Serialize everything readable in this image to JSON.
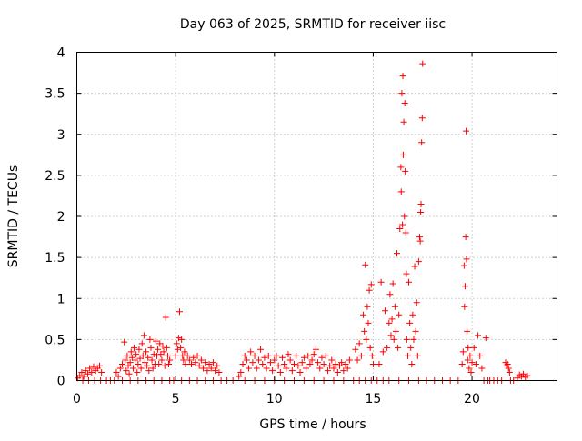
{
  "chart_data": {
    "type": "scatter",
    "title": "Day 063 of 2025, SRMTID for receiver iisc",
    "xlabel": "GPS time / hours",
    "ylabel": "SRMTID / TECUs",
    "xlim": [
      0,
      24.3
    ],
    "ylim": [
      0,
      4
    ],
    "x_ticks": [
      0,
      5,
      10,
      15,
      20
    ],
    "x_tick_labels": [
      "0",
      "5",
      "10",
      "15",
      "20"
    ],
    "y_ticks": [
      0,
      0.5,
      1,
      1.5,
      2,
      2.5,
      3,
      3.5,
      4
    ],
    "y_tick_labels": [
      "0",
      "0.5",
      "1",
      "1.5",
      "2",
      "2.5",
      "3",
      "3.5",
      "4"
    ],
    "grid": true,
    "marker": "+",
    "color": "#ff0000",
    "series": [
      {
        "name": "SRMTID",
        "points": [
          [
            0.05,
            0.03
          ],
          [
            0.15,
            0.06
          ],
          [
            0.25,
            0.1
          ],
          [
            0.35,
            0.05
          ],
          [
            0.45,
            0.12
          ],
          [
            0.55,
            0.08
          ],
          [
            0.65,
            0.15
          ],
          [
            0.75,
            0.1
          ],
          [
            0.85,
            0.17
          ],
          [
            0.95,
            0.12
          ],
          [
            1.05,
            0.15
          ],
          [
            1.15,
            0.18
          ],
          [
            1.25,
            0.1
          ],
          [
            0.3,
            0.0
          ],
          [
            0.6,
            0.0
          ],
          [
            0.9,
            0.0
          ],
          [
            1.2,
            0.0
          ],
          [
            1.5,
            0.0
          ],
          [
            1.7,
            0.0
          ],
          [
            1.9,
            0.0
          ],
          [
            2.0,
            0.1
          ],
          [
            2.1,
            0.05
          ],
          [
            2.2,
            0.15
          ],
          [
            2.3,
            0.2
          ],
          [
            2.4,
            0.47
          ],
          [
            2.45,
            0.25
          ],
          [
            2.5,
            0.12
          ],
          [
            2.55,
            0.3
          ],
          [
            2.6,
            0.18
          ],
          [
            2.65,
            0.08
          ],
          [
            2.7,
            0.22
          ],
          [
            2.75,
            0.35
          ],
          [
            2.8,
            0.28
          ],
          [
            2.85,
            0.15
          ],
          [
            2.9,
            0.4
          ],
          [
            2.95,
            0.25
          ],
          [
            3.0,
            0.32
          ],
          [
            3.05,
            0.1
          ],
          [
            3.1,
            0.2
          ],
          [
            3.15,
            0.38
          ],
          [
            3.2,
            0.27
          ],
          [
            3.25,
            0.15
          ],
          [
            3.3,
            0.45
          ],
          [
            3.35,
            0.3
          ],
          [
            3.4,
            0.55
          ],
          [
            3.45,
            0.22
          ],
          [
            3.5,
            0.35
          ],
          [
            3.55,
            0.18
          ],
          [
            3.6,
            0.28
          ],
          [
            3.65,
            0.12
          ],
          [
            3.7,
            0.5
          ],
          [
            3.75,
            0.4
          ],
          [
            3.8,
            0.25
          ],
          [
            3.85,
            0.15
          ],
          [
            3.9,
            0.32
          ],
          [
            3.95,
            0.2
          ],
          [
            4.0,
            0.48
          ],
          [
            4.05,
            0.3
          ],
          [
            4.1,
            0.38
          ],
          [
            4.15,
            0.2
          ],
          [
            4.2,
            0.45
          ],
          [
            4.25,
            0.32
          ],
          [
            4.3,
            0.25
          ],
          [
            4.35,
            0.42
          ],
          [
            4.4,
            0.35
          ],
          [
            4.45,
            0.18
          ],
          [
            4.5,
            0.77
          ],
          [
            4.55,
            0.4
          ],
          [
            4.6,
            0.3
          ],
          [
            4.65,
            0.2
          ],
          [
            4.7,
            0.25
          ],
          [
            2.3,
            0.0
          ],
          [
            2.7,
            0.0
          ],
          [
            3.1,
            0.0
          ],
          [
            3.5,
            0.0
          ],
          [
            3.9,
            0.0
          ],
          [
            4.3,
            0.0
          ],
          [
            4.7,
            0.0
          ],
          [
            4.9,
            0.0
          ],
          [
            5.0,
            0.3
          ],
          [
            5.05,
            0.45
          ],
          [
            5.1,
            0.38
          ],
          [
            5.15,
            0.52
          ],
          [
            5.2,
            0.84
          ],
          [
            5.25,
            0.4
          ],
          [
            5.3,
            0.5
          ],
          [
            5.35,
            0.3
          ],
          [
            5.4,
            0.25
          ],
          [
            5.45,
            0.35
          ],
          [
            5.5,
            0.2
          ],
          [
            5.6,
            0.3
          ],
          [
            5.7,
            0.25
          ],
          [
            5.8,
            0.2
          ],
          [
            5.9,
            0.28
          ],
          [
            6.0,
            0.22
          ],
          [
            6.1,
            0.3
          ],
          [
            6.2,
            0.18
          ],
          [
            6.3,
            0.25
          ],
          [
            6.4,
            0.15
          ],
          [
            6.5,
            0.22
          ],
          [
            6.6,
            0.12
          ],
          [
            6.7,
            0.2
          ],
          [
            6.8,
            0.15
          ],
          [
            6.9,
            0.22
          ],
          [
            7.0,
            0.12
          ],
          [
            7.1,
            0.18
          ],
          [
            7.2,
            0.1
          ],
          [
            5.3,
            0.0
          ],
          [
            5.7,
            0.0
          ],
          [
            6.1,
            0.0
          ],
          [
            6.5,
            0.0
          ],
          [
            6.9,
            0.0
          ],
          [
            7.3,
            0.0
          ],
          [
            7.6,
            0.0
          ],
          [
            7.9,
            0.0
          ],
          [
            8.2,
            0.05
          ],
          [
            8.3,
            0.1
          ],
          [
            8.4,
            0.2
          ],
          [
            8.5,
            0.3
          ],
          [
            8.6,
            0.25
          ],
          [
            8.7,
            0.15
          ],
          [
            8.8,
            0.35
          ],
          [
            8.9,
            0.22
          ],
          [
            9.0,
            0.3
          ],
          [
            9.1,
            0.15
          ],
          [
            9.2,
            0.25
          ],
          [
            9.3,
            0.38
          ],
          [
            9.4,
            0.2
          ],
          [
            9.5,
            0.28
          ],
          [
            9.6,
            0.15
          ],
          [
            9.7,
            0.3
          ],
          [
            9.8,
            0.22
          ],
          [
            9.9,
            0.12
          ],
          [
            10.0,
            0.25
          ],
          [
            10.1,
            0.3
          ],
          [
            10.2,
            0.18
          ],
          [
            10.3,
            0.1
          ],
          [
            10.4,
            0.28
          ],
          [
            10.5,
            0.2
          ],
          [
            10.6,
            0.15
          ],
          [
            10.7,
            0.32
          ],
          [
            10.8,
            0.25
          ],
          [
            10.9,
            0.12
          ],
          [
            11.0,
            0.2
          ],
          [
            11.1,
            0.3
          ],
          [
            11.2,
            0.18
          ],
          [
            11.3,
            0.1
          ],
          [
            11.4,
            0.22
          ],
          [
            11.5,
            0.28
          ],
          [
            11.6,
            0.15
          ],
          [
            11.7,
            0.3
          ],
          [
            11.8,
            0.2
          ],
          [
            11.9,
            0.25
          ],
          [
            12.0,
            0.32
          ],
          [
            12.1,
            0.38
          ],
          [
            12.2,
            0.22
          ],
          [
            12.3,
            0.15
          ],
          [
            12.4,
            0.28
          ],
          [
            12.5,
            0.2
          ],
          [
            12.6,
            0.3
          ],
          [
            12.7,
            0.12
          ],
          [
            12.8,
            0.18
          ],
          [
            12.9,
            0.25
          ],
          [
            13.0,
            0.15
          ],
          [
            13.1,
            0.2
          ],
          [
            13.2,
            0.1
          ],
          [
            13.3,
            0.18
          ],
          [
            13.4,
            0.22
          ],
          [
            13.5,
            0.12
          ],
          [
            13.6,
            0.2
          ],
          [
            13.7,
            0.15
          ],
          [
            13.8,
            0.25
          ],
          [
            8.5,
            0.0
          ],
          [
            9.0,
            0.0
          ],
          [
            9.5,
            0.0
          ],
          [
            10.0,
            0.0
          ],
          [
            10.5,
            0.0
          ],
          [
            11.0,
            0.0
          ],
          [
            11.5,
            0.0
          ],
          [
            12.0,
            0.0
          ],
          [
            12.5,
            0.0
          ],
          [
            13.0,
            0.0
          ],
          [
            13.5,
            0.0
          ],
          [
            14.0,
            0.0
          ],
          [
            14.1,
            0.38
          ],
          [
            14.2,
            0.25
          ],
          [
            14.3,
            0.45
          ],
          [
            14.4,
            0.3
          ],
          [
            14.5,
            0.8
          ],
          [
            14.55,
            0.6
          ],
          [
            14.6,
            1.41
          ],
          [
            14.65,
            0.5
          ],
          [
            14.7,
            0.9
          ],
          [
            14.75,
            0.7
          ],
          [
            14.8,
            1.1
          ],
          [
            14.85,
            0.4
          ],
          [
            14.9,
            1.17
          ],
          [
            14.95,
            0.3
          ],
          [
            15.0,
            0.2
          ],
          [
            14.3,
            0.0
          ],
          [
            14.6,
            0.0
          ],
          [
            14.9,
            0.0
          ],
          [
            15.2,
            0.0
          ],
          [
            15.5,
            0.0
          ],
          [
            15.8,
            0.0
          ],
          [
            15.3,
            0.2
          ],
          [
            15.4,
            1.2
          ],
          [
            15.5,
            0.35
          ],
          [
            15.6,
            0.85
          ],
          [
            15.7,
            0.4
          ],
          [
            15.8,
            0.7
          ],
          [
            15.85,
            1.05
          ],
          [
            15.9,
            0.55
          ],
          [
            15.95,
            0.75
          ],
          [
            16.0,
            1.18
          ],
          [
            16.05,
            0.5
          ],
          [
            16.1,
            0.9
          ],
          [
            16.15,
            0.6
          ],
          [
            16.2,
            1.55
          ],
          [
            16.25,
            0.4
          ],
          [
            16.3,
            0.8
          ],
          [
            16.35,
            1.85
          ],
          [
            16.4,
            2.6
          ],
          [
            16.42,
            2.3
          ],
          [
            16.45,
            3.5
          ],
          [
            16.48,
            1.9
          ],
          [
            16.5,
            3.71
          ],
          [
            16.52,
            2.75
          ],
          [
            16.55,
            3.15
          ],
          [
            16.58,
            2.0
          ],
          [
            16.6,
            3.38
          ],
          [
            16.62,
            2.55
          ],
          [
            16.65,
            1.8
          ],
          [
            16.68,
            1.3
          ],
          [
            16.7,
            0.5
          ],
          [
            16.75,
            0.3
          ],
          [
            16.8,
            1.2
          ],
          [
            16.85,
            0.7
          ],
          [
            16.9,
            0.4
          ],
          [
            16.95,
            0.2
          ],
          [
            17.0,
            0.8
          ],
          [
            17.05,
            0.5
          ],
          [
            17.1,
            1.39
          ],
          [
            17.15,
            0.6
          ],
          [
            17.2,
            0.95
          ],
          [
            17.25,
            0.3
          ],
          [
            17.3,
            1.45
          ],
          [
            17.35,
            1.75
          ],
          [
            17.38,
            1.7
          ],
          [
            17.4,
            2.05
          ],
          [
            17.42,
            2.15
          ],
          [
            17.45,
            2.9
          ],
          [
            17.48,
            3.2
          ],
          [
            17.5,
            3.86
          ],
          [
            16.3,
            0.0
          ],
          [
            16.8,
            0.0
          ],
          [
            17.3,
            0.0
          ],
          [
            17.7,
            0.0
          ],
          [
            18.1,
            0.0
          ],
          [
            18.5,
            0.0
          ],
          [
            18.9,
            0.0
          ],
          [
            19.3,
            0.0
          ],
          [
            19.5,
            0.2
          ],
          [
            19.55,
            0.35
          ],
          [
            19.6,
            1.4
          ],
          [
            19.62,
            0.9
          ],
          [
            19.65,
            1.15
          ],
          [
            19.68,
            1.75
          ],
          [
            19.7,
            3.04
          ],
          [
            19.72,
            1.48
          ],
          [
            19.75,
            0.6
          ],
          [
            19.78,
            0.25
          ],
          [
            19.8,
            0.4
          ],
          [
            19.85,
            0.15
          ],
          [
            19.9,
            0.3
          ],
          [
            19.95,
            0.1
          ],
          [
            20.0,
            0.22
          ],
          [
            20.1,
            0.4
          ],
          [
            20.2,
            0.2
          ],
          [
            20.3,
            0.55
          ],
          [
            20.4,
            0.3
          ],
          [
            20.5,
            0.15
          ],
          [
            20.6,
            0.0
          ],
          [
            20.7,
            0.52
          ],
          [
            20.8,
            0.0
          ],
          [
            20.9,
            0.0
          ],
          [
            21.1,
            0.0
          ],
          [
            21.3,
            0.0
          ],
          [
            21.5,
            0.0
          ],
          [
            21.7,
            0.22
          ],
          [
            21.75,
            0.18
          ],
          [
            21.8,
            0.2
          ],
          [
            21.85,
            0.15
          ],
          [
            21.9,
            0.1
          ],
          [
            21.95,
            0.0
          ],
          [
            22.1,
            0.0
          ],
          [
            22.3,
            0.03
          ],
          [
            22.4,
            0.07
          ],
          [
            22.5,
            0.05
          ],
          [
            22.6,
            0.08
          ],
          [
            22.7,
            0.04
          ],
          [
            22.8,
            0.06
          ]
        ]
      }
    ]
  }
}
